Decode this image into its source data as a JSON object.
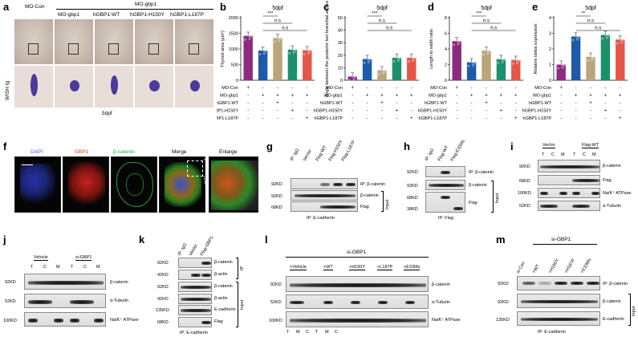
{
  "panels": {
    "a": {
      "label": "a",
      "group_header": "MO-gbp1",
      "columns": [
        "MO-Con",
        "MO-gbp1",
        "hGBP1-WT",
        "hGBP1-H150Y",
        "hGBP1-L187P"
      ],
      "side_label": "WISH tg",
      "footer": "5dpf"
    },
    "f": {
      "label": "f",
      "columns": [
        "DAPI",
        "GBP1",
        "β-catenin",
        "Merge",
        "Enlarge"
      ]
    },
    "g": {
      "label": "g",
      "lanes": [
        "IP: IgG",
        "Vector",
        "Flag-WT",
        "Flag-H150Y",
        "Flag-L187P"
      ],
      "rows": [
        {
          "kd": "92KD",
          "name": "IP: β-catenin"
        },
        {
          "kd": "92KD",
          "name": "β-catenin"
        },
        {
          "kd": "68KD",
          "name": "Flag"
        }
      ],
      "input_label": "Input",
      "footer": "IP: E-cadherin"
    },
    "h": {
      "label": "h",
      "lanes": [
        "IP: IgG",
        "Flag-WT",
        "Flag-E336fs"
      ],
      "rows": [
        {
          "kd": "92KD",
          "name": "IP: β-catenin"
        },
        {
          "kd": "92KD",
          "name": "β-catenin"
        },
        {
          "kd": "68KD",
          "name": "Flag"
        },
        {
          "kd": "38KD",
          "name": ""
        }
      ],
      "input_label": "Input",
      "footer": "IP: Flag"
    },
    "i": {
      "label": "i",
      "groups": [
        "Vector",
        "Flag-WT"
      ],
      "lanes": [
        "T",
        "C",
        "M",
        "T",
        "C",
        "M"
      ],
      "rows": [
        {
          "kd": "92KD",
          "name": "β-catenin"
        },
        {
          "kd": "68KD",
          "name": "Flag"
        },
        {
          "kd": "100KD",
          "name": "Na/K⁺ ATPase"
        },
        {
          "kd": "52KD",
          "name": "α-Tubulin"
        }
      ]
    },
    "j": {
      "label": "j",
      "groups": [
        "Vehicle",
        "si-GBP1"
      ],
      "lanes": [
        "T",
        "C",
        "M",
        "T",
        "C",
        "M"
      ],
      "rows": [
        {
          "kd": "92KD",
          "name": "β-catenin"
        },
        {
          "kd": "52KD",
          "name": "α-Tubulin"
        },
        {
          "kd": "100KD",
          "name": "Na/K⁺ ATPase"
        }
      ]
    },
    "k": {
      "label": "k",
      "lanes": [
        "IP: IgG",
        "Vector",
        "Flag-GBP1"
      ],
      "rows": [
        {
          "kd": "92KD",
          "name": "β-catenin"
        },
        {
          "kd": "42KD",
          "name": "β-actin"
        },
        {
          "kd": "92KD",
          "name": "β-catenin"
        },
        {
          "kd": "42KD",
          "name": "β-actin"
        },
        {
          "kd": "135KD",
          "name": "E-cadherin"
        },
        {
          "kd": "68KD",
          "name": "Flag"
        }
      ],
      "ip_label": "IP",
      "input_label": "Input",
      "footer": "IP: E-cadherin"
    },
    "l": {
      "label": "l",
      "header": "si-GBP1",
      "groups": [
        "+Vehicle",
        "+WT",
        "+H150Y",
        "+L187P",
        "+E336fs"
      ],
      "lanes": [
        "T",
        "M",
        "C",
        "T",
        "M",
        "C"
      ],
      "rows": [
        {
          "kd": "92KD",
          "name": "β-catenin"
        },
        {
          "kd": "52KD",
          "name": "α-Tubulin"
        },
        {
          "kd": "100KD",
          "name": "Na/K⁺ ATPase"
        }
      ]
    },
    "m": {
      "label": "m",
      "header": "si-GBP1",
      "lanes": [
        "si-Con",
        "+WT",
        "+H150Y",
        "+H187P",
        "+E336fs"
      ],
      "rows": [
        {
          "kd": "92KD",
          "name": "IP: β-catenin"
        },
        {
          "kd": "92KD",
          "name": "β-catenin"
        },
        {
          "kd": "135KD",
          "name": "E-cadherin"
        }
      ],
      "input_label": "Input",
      "footer": "IP: E-cadherin"
    }
  },
  "chart_data": [
    {
      "type": "bar",
      "panel": "b",
      "title": "5dpf",
      "ylabel": "Thyroid area (μm²)",
      "ylim": [
        0,
        2000
      ],
      "yticks": [
        "0",
        "500",
        "1000",
        "1500",
        "2000"
      ],
      "categories": [
        "MO-Con",
        "MO-gbp1",
        "hGBP1-WT",
        "hGBP1-H150Y",
        "hGBP1-L187P"
      ],
      "values": [
        1420,
        950,
        1350,
        980,
        960
      ],
      "colors": [
        "#8b2a7e",
        "#1e5aa8",
        "#b9a57a",
        "#1d8f6a",
        "#e4564a"
      ],
      "significance": [
        {
          "from": 1,
          "to": 2,
          "label": "***"
        },
        {
          "from": 1,
          "to": 3,
          "label": "n.s"
        },
        {
          "from": 1,
          "to": 4,
          "label": "n.s"
        }
      ],
      "conditions": [
        {
          "label": "MO-Con",
          "signs": [
            "+",
            "-",
            "-",
            "-",
            "-"
          ]
        },
        {
          "label": "MO-gbp1",
          "signs": [
            "-",
            "+",
            "+",
            "+",
            "+"
          ]
        },
        {
          "label": "hGBP1-WT",
          "signs": [
            "-",
            "-",
            "+",
            "-",
            "-"
          ]
        },
        {
          "label": "hGBP1-H150Y",
          "signs": [
            "-",
            "-",
            "-",
            "+",
            "-"
          ]
        },
        {
          "label": "hGBP1-L187P",
          "signs": [
            "-",
            "-",
            "-",
            "-",
            "+"
          ]
        }
      ]
    },
    {
      "type": "bar",
      "panel": "c",
      "title": "5dpf",
      "ylabel": "Angle between the posterior two branchial arches",
      "ylim": [
        0,
        50
      ],
      "yticks": [
        "0",
        "10",
        "20",
        "30",
        "40",
        "50"
      ],
      "categories": [
        "MO-Con",
        "MO-gbp1",
        "hGBP1-WT",
        "hGBP1-H150Y",
        "hGBP1-L187P"
      ],
      "values": [
        3,
        17,
        8,
        18,
        18
      ],
      "colors": [
        "#8b2a7e",
        "#1e5aa8",
        "#b9a57a",
        "#1d8f6a",
        "#e4564a"
      ],
      "significance": [
        {
          "from": 1,
          "to": 2,
          "label": "***"
        },
        {
          "from": 1,
          "to": 3,
          "label": "n.s"
        },
        {
          "from": 1,
          "to": 4,
          "label": "n.s"
        }
      ],
      "conditions": [
        {
          "label": "MO-Con",
          "signs": [
            "+",
            "-",
            "-",
            "-",
            "-"
          ]
        },
        {
          "label": "MO-gbp1",
          "signs": [
            "-",
            "+",
            "+",
            "+",
            "+"
          ]
        },
        {
          "label": "hGBP1-WT",
          "signs": [
            "-",
            "-",
            "+",
            "-",
            "-"
          ]
        },
        {
          "label": "hGBP1-H150Y",
          "signs": [
            "-",
            "-",
            "-",
            "+",
            "-"
          ]
        },
        {
          "label": "hGBP1-L187P",
          "signs": [
            "-",
            "-",
            "-",
            "-",
            "+"
          ]
        }
      ]
    },
    {
      "type": "bar",
      "panel": "d",
      "title": "5dpf",
      "ylabel": "Length to width ratio",
      "ylim": [
        0,
        8
      ],
      "yticks": [
        "0",
        "2",
        "4",
        "6",
        "8"
      ],
      "categories": [
        "MO-Con",
        "MO-gbp1",
        "hGBP1-WT",
        "hGBP1-H150Y",
        "hGBP1-L187P"
      ],
      "values": [
        5.0,
        2.3,
        3.8,
        2.7,
        2.6
      ],
      "colors": [
        "#8b2a7e",
        "#1e5aa8",
        "#b9a57a",
        "#1d8f6a",
        "#e4564a"
      ],
      "significance": [
        {
          "from": 1,
          "to": 2,
          "label": "***"
        },
        {
          "from": 1,
          "to": 3,
          "label": "n.s"
        },
        {
          "from": 1,
          "to": 4,
          "label": "n.s"
        }
      ],
      "conditions": [
        {
          "label": "MO-Con",
          "signs": [
            "+",
            "-",
            "-",
            "-",
            "-"
          ]
        },
        {
          "label": "MO-gbp1",
          "signs": [
            "-",
            "+",
            "+",
            "+",
            "+"
          ]
        },
        {
          "label": "hGBP1-WT",
          "signs": [
            "-",
            "-",
            "+",
            "-",
            "-"
          ]
        },
        {
          "label": "hGBP1-H150Y",
          "signs": [
            "-",
            "-",
            "-",
            "+",
            "-"
          ]
        },
        {
          "label": "hGBP1-L187P",
          "signs": [
            "-",
            "-",
            "-",
            "-",
            "+"
          ]
        }
      ]
    },
    {
      "type": "bar",
      "panel": "e",
      "title": "5dpf",
      "ylabel": "Relative tshba expression",
      "ylim": [
        0,
        4
      ],
      "yticks": [
        "0",
        "1",
        "2",
        "3",
        "4"
      ],
      "categories": [
        "MO-Con",
        "MO-gbp1",
        "hGBP1-WT",
        "hGBP1-H150Y",
        "hGBP1-L187P"
      ],
      "values": [
        1.0,
        2.8,
        1.5,
        2.9,
        2.6
      ],
      "colors": [
        "#8b2a7e",
        "#1e5aa8",
        "#b9a57a",
        "#1d8f6a",
        "#e4564a"
      ],
      "significance": [
        {
          "from": 1,
          "to": 2,
          "label": "**"
        },
        {
          "from": 1,
          "to": 3,
          "label": "n.s"
        },
        {
          "from": 1,
          "to": 4,
          "label": "n.s"
        }
      ],
      "conditions": [
        {
          "label": "MO-Con",
          "signs": [
            "+",
            "-",
            "-",
            "-",
            "-"
          ]
        },
        {
          "label": "MO-gbp1",
          "signs": [
            "-",
            "+",
            "+",
            "+",
            "+"
          ]
        },
        {
          "label": "hGBP1-WT",
          "signs": [
            "-",
            "-",
            "+",
            "-",
            "-"
          ]
        },
        {
          "label": "hGBP1-H150Y",
          "signs": [
            "-",
            "-",
            "-",
            "+",
            "-"
          ]
        },
        {
          "label": "hGBP1-L187P",
          "signs": [
            "-",
            "-",
            "-",
            "-",
            "+"
          ]
        }
      ]
    }
  ]
}
